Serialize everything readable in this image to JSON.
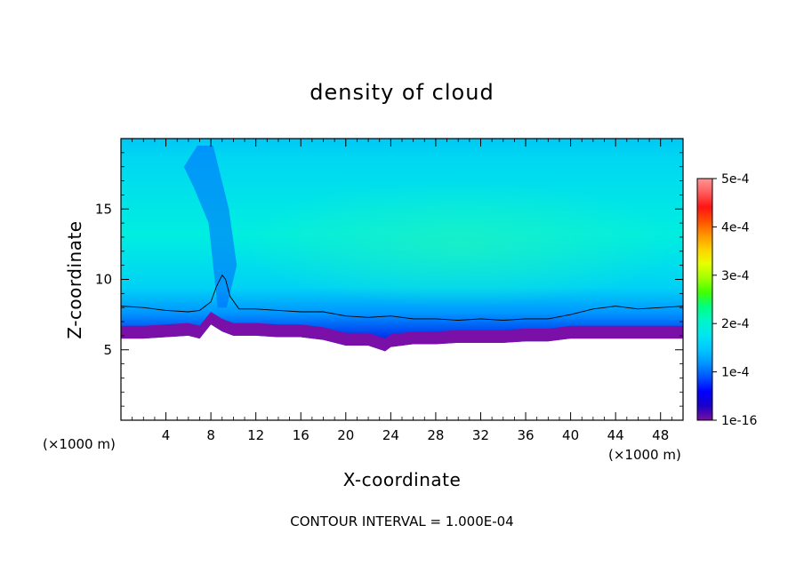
{
  "chart_data": {
    "type": "heatmap",
    "title": "density of cloud",
    "xlabel": "X-coordinate",
    "ylabel": "Z-coordinate",
    "x_unit": "(×1000 m)",
    "x_unit_right": "(×1000 m)",
    "xlim": [
      0,
      50
    ],
    "ylim": [
      0,
      20
    ],
    "x_ticks": [
      4,
      8,
      12,
      16,
      20,
      24,
      28,
      32,
      36,
      40,
      44,
      48
    ],
    "y_ticks": [
      5,
      10,
      15
    ],
    "colorbar": {
      "min": 1e-16,
      "max": 0.0005,
      "tick_labels": [
        "5e-4",
        "4e-4",
        "3e-4",
        "2e-4",
        "1e-4",
        "1e-16"
      ],
      "tick_values": [
        0.0005,
        0.0004,
        0.0003,
        0.0002,
        0.0001,
        1e-16
      ],
      "colors": [
        "#7a0fa0",
        "#1a00c8",
        "#0000ff",
        "#0050ff",
        "#0096ff",
        "#00c8ff",
        "#00e6f0",
        "#00f5c8",
        "#00ff80",
        "#40ff00",
        "#a0ff00",
        "#e6ff00",
        "#ffd200",
        "#ff9600",
        "#ff5000",
        "#ff1414",
        "#ff5a5a",
        "#ff9696"
      ]
    },
    "contour_interval_text": "CONTOUR INTERVAL = 1.000E-04",
    "contour_level": 0.0001,
    "contour_line": {
      "x": [
        0,
        2,
        4,
        6,
        7,
        8,
        8.5,
        9,
        9.3,
        9.7,
        10.5,
        12,
        14,
        16,
        18,
        20,
        22,
        24,
        26,
        28,
        30,
        32,
        34,
        36,
        38,
        40,
        42,
        44,
        46,
        48,
        50
      ],
      "z": [
        8.1,
        8.0,
        7.8,
        7.7,
        7.8,
        8.4,
        9.5,
        10.3,
        10.0,
        8.8,
        7.9,
        7.9,
        7.8,
        7.7,
        7.7,
        7.4,
        7.3,
        7.4,
        7.2,
        7.2,
        7.1,
        7.2,
        7.1,
        7.2,
        7.2,
        7.5,
        7.9,
        8.1,
        7.9,
        8.0,
        8.1
      ]
    },
    "cloud_base": {
      "x": [
        0,
        2,
        4,
        6,
        7,
        8,
        9,
        10,
        12,
        14,
        16,
        18,
        20,
        22,
        23.5,
        24,
        26,
        28,
        30,
        32,
        34,
        36,
        38,
        40,
        42,
        44,
        46,
        48,
        50
      ],
      "z": [
        5.8,
        5.8,
        5.9,
        6.0,
        5.8,
        6.8,
        6.3,
        6.0,
        6.0,
        5.9,
        5.9,
        5.7,
        5.3,
        5.3,
        4.9,
        5.2,
        5.4,
        5.4,
        5.5,
        5.5,
        5.5,
        5.6,
        5.6,
        5.8,
        5.8,
        5.8,
        5.8,
        5.8,
        5.8
      ]
    }
  }
}
